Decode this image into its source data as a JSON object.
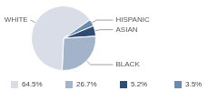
{
  "chart_data": {
    "type": "pie",
    "categories": [
      "HISPANIC",
      "ASIAN",
      "BLACK",
      "WHITE"
    ],
    "values": [
      3.5,
      5.2,
      26.7,
      64.5
    ],
    "value_labels": [
      "3.5%",
      "5.2%",
      "26.7%",
      "64.5%"
    ],
    "colors": [
      "#6a8ab0",
      "#2f4d72",
      "#a3b3c9",
      "#d9dde8"
    ],
    "legend": "bottom"
  }
}
